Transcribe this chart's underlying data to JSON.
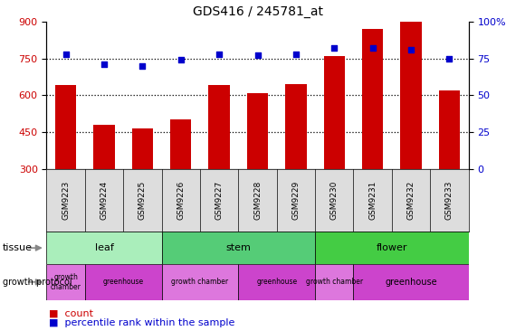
{
  "title": "GDS416 / 245781_at",
  "samples": [
    "GSM9223",
    "GSM9224",
    "GSM9225",
    "GSM9226",
    "GSM9227",
    "GSM9228",
    "GSM9229",
    "GSM9230",
    "GSM9231",
    "GSM9232",
    "GSM9233"
  ],
  "counts": [
    640,
    480,
    465,
    500,
    640,
    610,
    645,
    760,
    870,
    920,
    620
  ],
  "percentiles": [
    78,
    71,
    70,
    74,
    78,
    77,
    78,
    82,
    82,
    81,
    75
  ],
  "y_min": 300,
  "y_max": 900,
  "y_left_ticks": [
    300,
    450,
    600,
    750,
    900
  ],
  "y_right_ticks": [
    0,
    25,
    50,
    75,
    100
  ],
  "bar_color": "#cc0000",
  "dot_color": "#0000cc",
  "tissue_groups": [
    {
      "label": "leaf",
      "start": 0,
      "end": 3,
      "color": "#aaeebb"
    },
    {
      "label": "stem",
      "start": 3,
      "end": 7,
      "color": "#55cc77"
    },
    {
      "label": "flower",
      "start": 7,
      "end": 11,
      "color": "#44cc44"
    }
  ],
  "protocol_groups": [
    {
      "label": "growth\nchamber",
      "start": 0,
      "end": 1,
      "color": "#dd77dd"
    },
    {
      "label": "greenhouse",
      "start": 1,
      "end": 3,
      "color": "#cc44cc"
    },
    {
      "label": "growth chamber",
      "start": 3,
      "end": 5,
      "color": "#dd77dd"
    },
    {
      "label": "greenhouse",
      "start": 5,
      "end": 7,
      "color": "#cc44cc"
    },
    {
      "label": "growth chamber",
      "start": 7,
      "end": 8,
      "color": "#dd77dd"
    },
    {
      "label": "greenhouse",
      "start": 8,
      "end": 11,
      "color": "#cc44cc"
    }
  ],
  "dotted_line_vals": [
    750,
    600,
    450
  ],
  "bg_color": "#ffffff"
}
